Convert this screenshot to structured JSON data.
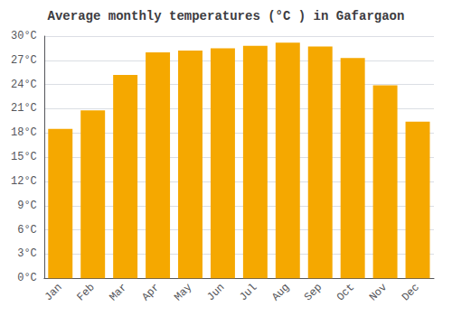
{
  "chart_data": {
    "type": "bar",
    "title": "Average monthly temperatures (°C ) in Gafargaon",
    "categories": [
      "Jan",
      "Feb",
      "Mar",
      "Apr",
      "May",
      "Jun",
      "Jul",
      "Aug",
      "Sep",
      "Oct",
      "Nov",
      "Dec"
    ],
    "values": [
      18.5,
      20.8,
      25.2,
      28.0,
      28.2,
      28.5,
      28.8,
      29.2,
      28.7,
      27.3,
      23.9,
      19.4
    ],
    "color": "#F5A800",
    "ylim": [
      0,
      30
    ],
    "yticks": [
      {
        "value": 0,
        "label": "0°C"
      },
      {
        "value": 3,
        "label": "3°C"
      },
      {
        "value": 6,
        "label": "6°C"
      },
      {
        "value": 9,
        "label": "9°C"
      },
      {
        "value": 12,
        "label": "12°C"
      },
      {
        "value": 15,
        "label": "15°C"
      },
      {
        "value": 18,
        "label": "18°C"
      },
      {
        "value": 21,
        "label": "21°C"
      },
      {
        "value": 24,
        "label": "24°C"
      },
      {
        "value": 27,
        "label": "27°C"
      },
      {
        "value": 30,
        "label": "30°C"
      }
    ],
    "grid": true
  }
}
